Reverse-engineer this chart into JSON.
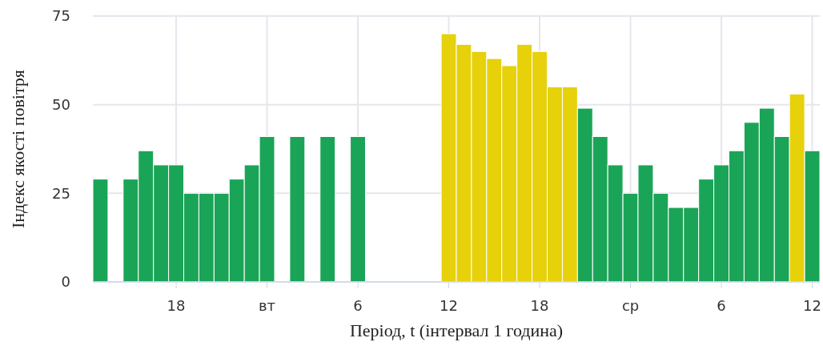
{
  "chart_data": {
    "type": "bar",
    "xlabel": "Період, t (інтервал 1 година)",
    "ylabel": "Індекс якості повітря",
    "categories": [
      null,
      null,
      null,
      null,
      null,
      "18",
      null,
      null,
      null,
      null,
      null,
      "вт",
      null,
      null,
      null,
      null,
      null,
      "6",
      null,
      null,
      null,
      null,
      null,
      "12",
      null,
      null,
      null,
      null,
      null,
      "18",
      null,
      null,
      null,
      null,
      null,
      "ср",
      null,
      null,
      null,
      null,
      null,
      "6",
      null,
      null,
      null,
      null,
      null,
      "12"
    ],
    "values": [
      29,
      null,
      29,
      37,
      33,
      33,
      25,
      25,
      25,
      29,
      33,
      41,
      null,
      41,
      null,
      41,
      null,
      41,
      null,
      null,
      null,
      null,
      null,
      70,
      67,
      65,
      63,
      61,
      67,
      65,
      55,
      55,
      49,
      41,
      33,
      25,
      33,
      25,
      21,
      21,
      29,
      33,
      37,
      45,
      49,
      41,
      53,
      37
    ],
    "colors": [
      "#1aa457",
      null,
      "#1aa457",
      "#1aa457",
      "#1aa457",
      "#1aa457",
      "#1aa457",
      "#1aa457",
      "#1aa457",
      "#1aa457",
      "#1aa457",
      "#1aa457",
      null,
      "#1aa457",
      null,
      "#1aa457",
      null,
      "#1aa457",
      null,
      null,
      null,
      null,
      null,
      "#e6d10b",
      "#e6d10b",
      "#e6d10b",
      "#e6d10b",
      "#e6d10b",
      "#e6d10b",
      "#e6d10b",
      "#e6d10b",
      "#e6d10b",
      "#1aa457",
      "#1aa457",
      "#1aa457",
      "#1aa457",
      "#1aa457",
      "#1aa457",
      "#1aa457",
      "#1aa457",
      "#1aa457",
      "#1aa457",
      "#1aa457",
      "#1aa457",
      "#1aa457",
      "#1aa457",
      "#e6d10b",
      "#1aa457"
    ],
    "ylim": [
      0,
      75
    ],
    "yticks": [
      0,
      25,
      50,
      75
    ],
    "grid": true
  }
}
